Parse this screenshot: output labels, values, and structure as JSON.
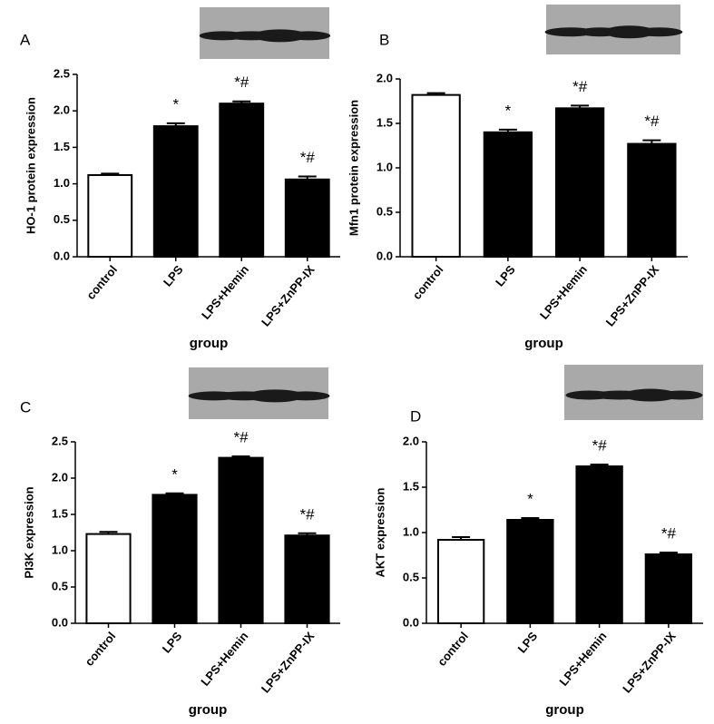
{
  "chart_data": [
    {
      "type": "bar",
      "panel": "A",
      "ylabel": "HO-1 protein expression",
      "xlabel": "group",
      "categories": [
        "control",
        "LPS",
        "LPS+Hemin",
        "LPS+ZnPP-IX"
      ],
      "values": [
        1.12,
        1.79,
        2.1,
        1.06
      ],
      "errors": [
        0.02,
        0.04,
        0.03,
        0.04
      ],
      "annotations": [
        null,
        "*",
        "*#",
        "*#"
      ],
      "colors": [
        "#ffffff",
        "#000000",
        "#000000",
        "#000000"
      ],
      "ylim": [
        0,
        2.5
      ],
      "yticks": [
        {
          "value": 0,
          "label": "0.0"
        },
        0.5,
        {
          "value": 1,
          "label": "1.0"
        },
        1.5,
        {
          "value": 2,
          "label": "2.0"
        },
        2.5
      ]
    },
    {
      "type": "bar",
      "panel": "B",
      "ylabel": "Mfn1 protein expression",
      "xlabel": "group",
      "categories": [
        "control",
        "LPS",
        "LPS+Hemin",
        "LPS+ZnPP-IX"
      ],
      "values": [
        1.82,
        1.4,
        1.67,
        1.27
      ],
      "errors": [
        0.02,
        0.03,
        0.03,
        0.04
      ],
      "annotations": [
        null,
        "*",
        "*#",
        "*#"
      ],
      "colors": [
        "#ffffff",
        "#000000",
        "#000000",
        "#000000"
      ],
      "ylim": [
        0,
        2.0
      ],
      "yticks": [
        {
          "value": 0,
          "label": "0.0"
        },
        0.5,
        {
          "value": 1,
          "label": "1.0"
        },
        1.5,
        {
          "value": 2,
          "label": "2.0"
        }
      ]
    },
    {
      "type": "bar",
      "panel": "C",
      "ylabel": "PI3K expression",
      "xlabel": "group",
      "categories": [
        "control",
        "LPS",
        "LPS+Hemin",
        "LPS+ZnPP-IX"
      ],
      "values": [
        1.23,
        1.77,
        2.28,
        1.21
      ],
      "errors": [
        0.03,
        0.02,
        0.02,
        0.03
      ],
      "annotations": [
        null,
        "*",
        "*#",
        "*#"
      ],
      "colors": [
        "#ffffff",
        "#000000",
        "#000000",
        "#000000"
      ],
      "ylim": [
        0,
        2.5
      ],
      "yticks": [
        {
          "value": 0,
          "label": "0.0"
        },
        0.5,
        {
          "value": 1,
          "label": "1.0"
        },
        1.5,
        {
          "value": 2,
          "label": "2.0"
        },
        2.5
      ]
    },
    {
      "type": "bar",
      "panel": "D",
      "ylabel": "AKT expression",
      "xlabel": "group",
      "categories": [
        "control",
        "LPS",
        "LPS+Hemin",
        "LPS+ZnPP-IX"
      ],
      "values": [
        0.92,
        1.14,
        1.73,
        0.76
      ],
      "errors": [
        0.03,
        0.02,
        0.02,
        0.02
      ],
      "annotations": [
        null,
        "*",
        "*#",
        "*#"
      ],
      "colors": [
        "#ffffff",
        "#000000",
        "#000000",
        "#000000"
      ],
      "ylim": [
        0,
        2.0
      ],
      "yticks": [
        {
          "value": 0,
          "label": "0.0"
        },
        0.5,
        {
          "value": 1,
          "label": "1.0"
        },
        1.5,
        {
          "value": 2,
          "label": "2.0"
        }
      ]
    }
  ]
}
